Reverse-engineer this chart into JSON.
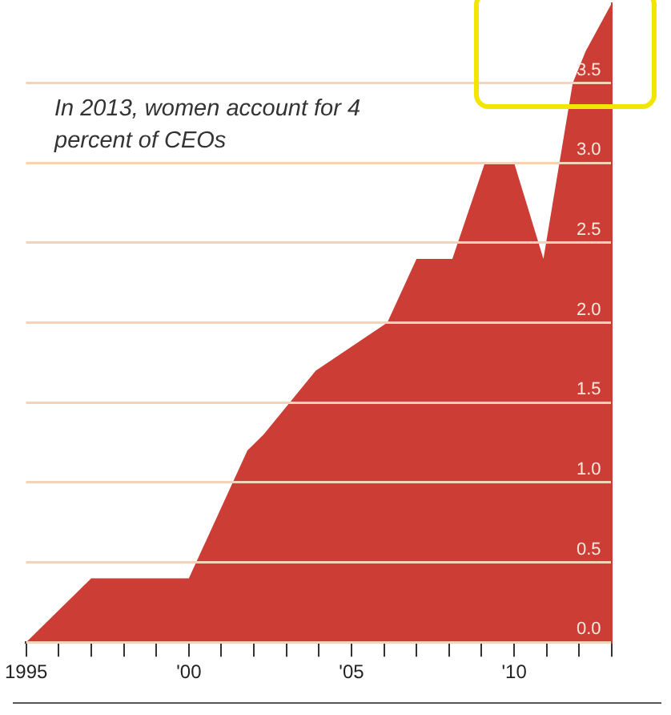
{
  "chart_data": {
    "type": "area",
    "x": [
      1995,
      1997,
      2000,
      2001.8,
      2002.3,
      2003.9,
      2006.1,
      2007,
      2008.1,
      2009.1,
      2010,
      2010.9,
      2011.8,
      2012.2,
      2013
    ],
    "series": [
      {
        "color": "#cc3d36",
        "values": [
          0,
          0.4,
          0.4,
          1.2,
          1.3,
          1.7,
          2.0,
          2.4,
          2.4,
          3.0,
          3.0,
          2.4,
          3.5,
          3.7,
          4.0
        ]
      }
    ],
    "xlim": [
      1995,
      2013
    ],
    "xticks": [
      {
        "value": 1995,
        "label": "1995"
      },
      {
        "value": 1996,
        "label": null
      },
      {
        "value": 1997,
        "label": null
      },
      {
        "value": 1998,
        "label": null
      },
      {
        "value": 1999,
        "label": null
      },
      {
        "value": 2000,
        "label": "'00"
      },
      {
        "value": 2001,
        "label": null
      },
      {
        "value": 2002,
        "label": null
      },
      {
        "value": 2003,
        "label": null
      },
      {
        "value": 2004,
        "label": null
      },
      {
        "value": 2005,
        "label": "'05"
      },
      {
        "value": 2006,
        "label": null
      },
      {
        "value": 2007,
        "label": null
      },
      {
        "value": 2008,
        "label": null
      },
      {
        "value": 2009,
        "label": null
      },
      {
        "value": 2010,
        "label": "'10"
      },
      {
        "value": 2011,
        "label": null
      },
      {
        "value": 2012,
        "label": null
      },
      {
        "value": 2013,
        "label": null
      }
    ],
    "ylim": [
      0,
      4
    ],
    "yticks": [
      {
        "value": 0,
        "label": "0.0"
      },
      {
        "value": 0.5,
        "label": "0.5"
      },
      {
        "value": 1,
        "label": "1.0"
      },
      {
        "value": 1.5,
        "label": "1.5"
      },
      {
        "value": 2,
        "label": "2.0"
      },
      {
        "value": 2.5,
        "label": "2.5"
      },
      {
        "value": 3,
        "label": "3.0"
      },
      {
        "value": 3.5,
        "label": "3.5"
      }
    ],
    "grid": "y",
    "legend": false,
    "annotations": [
      "In 2013, women account for 4 percent of CEOs"
    ]
  }
}
